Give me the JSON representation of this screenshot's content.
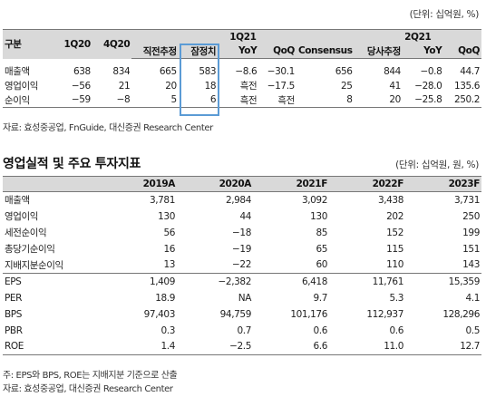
{
  "table1": {
    "unit": "(단위: 십억원, %)",
    "group_headers": {
      "q1": "1Q21",
      "q2": "2Q21"
    },
    "columns": [
      "구분",
      "1Q20",
      "4Q20",
      "직전추정",
      "잠정치",
      "YoY",
      "QoQ",
      "Consensus",
      "당사추정",
      "YoY",
      "QoQ"
    ],
    "rows": [
      {
        "label": "매출액",
        "values": [
          "638",
          "834",
          "665",
          "583",
          "−8.6",
          "−30.1",
          "656",
          "844",
          "−0.8",
          "44.7"
        ]
      },
      {
        "label": "영업이익",
        "values": [
          "−56",
          "21",
          "20",
          "18",
          "흑전",
          "−17.5",
          "25",
          "41",
          "−28.0",
          "135.6"
        ]
      },
      {
        "label": "순이익",
        "values": [
          "−59",
          "−8",
          "5",
          "6",
          "흑전",
          "흑전",
          "8",
          "20",
          "−25.8",
          "250.2"
        ]
      }
    ],
    "source": "자료: 효성중공업, FnGuide, 대신증권 Research Center"
  },
  "table2": {
    "title": "영업실적 및 주요 투자지표",
    "unit": "(단위: 십억원, 원, %)",
    "columns": [
      "",
      "2019A",
      "2020A",
      "2021F",
      "2022F",
      "2023F"
    ],
    "rows": [
      {
        "label": "매출액",
        "values": [
          "3,781",
          "2,984",
          "3,092",
          "3,438",
          "3,731"
        ]
      },
      {
        "label": "영업이익",
        "values": [
          "130",
          "44",
          "130",
          "202",
          "250"
        ]
      },
      {
        "label": "세전순이익",
        "values": [
          "56",
          "−18",
          "85",
          "152",
          "199"
        ]
      },
      {
        "label": "총당기순이익",
        "values": [
          "16",
          "−19",
          "65",
          "115",
          "151"
        ]
      },
      {
        "label": "지배지분순이익",
        "values": [
          "13",
          "−22",
          "60",
          "110",
          "143"
        ]
      },
      {
        "label": "EPS",
        "values": [
          "1,409",
          "−2,382",
          "6,418",
          "11,761",
          "15,359"
        ]
      },
      {
        "label": "PER",
        "values": [
          "18.9",
          "NA",
          "9.7",
          "5.3",
          "4.1"
        ]
      },
      {
        "label": "BPS",
        "values": [
          "97,403",
          "94,759",
          "101,176",
          "112,937",
          "128,296"
        ]
      },
      {
        "label": "PBR",
        "values": [
          "0.3",
          "0.7",
          "0.6",
          "0.6",
          "0.5"
        ]
      },
      {
        "label": "ROE",
        "values": [
          "1.4",
          "−2.5",
          "6.6",
          "11.0",
          "12.7"
        ]
      }
    ],
    "note": "주: EPS와 BPS, ROE는 지배지분 기준으로 산출",
    "source": "자료: 효성중공업, 대신증권 Research Center"
  }
}
